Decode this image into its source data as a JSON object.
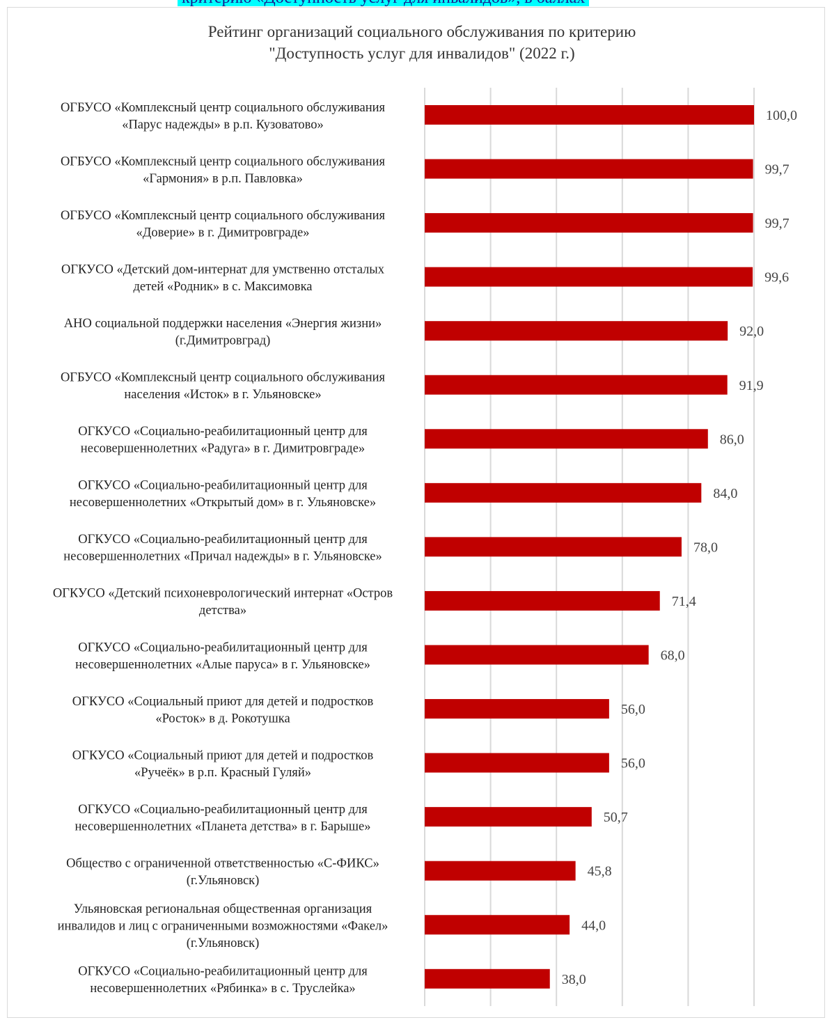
{
  "header_caption": "критерию «Доступность услуг для инвалидов», в баллах",
  "chart_data": {
    "type": "bar",
    "orientation": "horizontal",
    "title": "Рейтинг организаций социального обслуживания по критерию \"Доступность услуг для инвалидов\" (2022 г.)",
    "title_lines": [
      "Рейтинг организаций социального обслуживания по критерию",
      "\"Доступность услуг  для инвалидов\" (2022 г.)"
    ],
    "xlim": [
      0,
      100
    ],
    "grid": true,
    "color": "#c00000",
    "categories": [
      [
        "ОГБУСО «Комплексный центр социального обслуживания",
        "«Парус надежды» в р.п. Кузоватово»"
      ],
      [
        "ОГБУСО «Комплексный центр социального обслуживания",
        "«Гармония»  в р.п. Павловка»"
      ],
      [
        "ОГБУСО «Комплексный центр социального обслуживания",
        "«Доверие» в г. Димитровграде»"
      ],
      [
        "ОГКУСО «Детский дом-интернат для умственно отсталых",
        "детей «Родник» в с. Максимовка"
      ],
      [
        "АНО социальной поддержки населения «Энергия жизни»",
        "(г.Димитровград)"
      ],
      [
        "ОГБУСО «Комплексный центр социального обслуживания",
        "населения «Исток» в г. Ульяновске»"
      ],
      [
        "ОГКУСО «Социально-реабилитационный  центр для",
        "несовершеннолетних «Радуга» в г. Димитровграде»"
      ],
      [
        "ОГКУСО «Социально-реабилитационный  центр для",
        "несовершеннолетних «Открытый дом» в г. Ульяновске»"
      ],
      [
        "ОГКУСО «Социально-реабилитационный  центр для",
        "несовершеннолетних «Причал надежды» в г. Ульяновске»"
      ],
      [
        "ОГКУСО «Детский психоневрологический интернат  «Остров",
        "детства»"
      ],
      [
        "ОГКУСО «Социально-реабилитационный  центр для",
        "несовершеннолетних «Алые паруса» в г. Ульяновске»"
      ],
      [
        "ОГКУСО «Социальный  приют для детей и подростков",
        "«Росток» в д. Рокотушка"
      ],
      [
        "ОГКУСО «Социальный  приют для детей и подростков",
        "«Ручеёк» в р.п. Красный  Гуляй»"
      ],
      [
        "ОГКУСО «Социально-реабилитационный  центр для",
        "несовершеннолетних «Планета  детства» в г. Барыше»"
      ],
      [
        "Общество с ограниченной ответственностью «С-ФИКС»",
        "(г.Ульяновск)"
      ],
      [
        "Ульяновская региональная  общественная организация",
        "инвалидов и лиц  с ограниченными  возможностями «Факел»",
        "(г.Ульяновск)"
      ],
      [
        "ОГКУСО «Социально-реабилитационный  центр для",
        "несовершеннолетних «Рябинка»  в с. Труслейка»"
      ]
    ],
    "values": [
      100.0,
      99.7,
      99.7,
      99.6,
      92.0,
      91.9,
      86.0,
      84.0,
      78.0,
      71.4,
      68.0,
      56.0,
      56.0,
      50.7,
      45.8,
      44.0,
      38.0
    ],
    "data_labels": [
      "100,0",
      "99,7",
      "99,7",
      "99,6",
      "92,0",
      "91,9",
      "86,0",
      "84,0",
      "78,0",
      "71,4",
      "68,0",
      "56,0",
      "56,0",
      "50,7",
      "45,8",
      "44,0",
      "38,0"
    ]
  }
}
